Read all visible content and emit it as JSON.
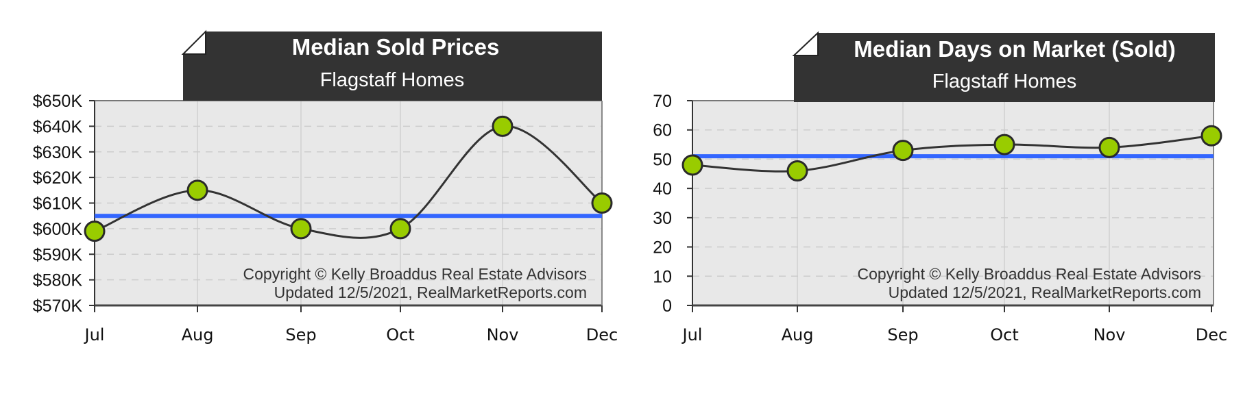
{
  "chart_data": [
    {
      "type": "line",
      "title": "Median Sold Prices",
      "subtitle": "Flagstaff Homes",
      "xlabel": "",
      "ylabel": "",
      "categories": [
        "Jul",
        "Aug",
        "Sep",
        "Oct",
        "Nov",
        "Dec"
      ],
      "series": [
        {
          "name": "Median Sold Price",
          "values": [
            599000,
            615000,
            600000,
            600000,
            640000,
            610000
          ],
          "color": "#99cc00"
        },
        {
          "name": "Average",
          "values": [
            605000,
            605000,
            605000,
            605000,
            605000,
            605000
          ],
          "color": "#3366ff"
        }
      ],
      "ylim": [
        570000,
        650000
      ],
      "yticks": [
        650000,
        640000,
        630000,
        620000,
        610000,
        600000,
        590000,
        580000,
        570000
      ],
      "ytick_labels": [
        "$650K",
        "$640K",
        "$630K",
        "$620K",
        "$610K",
        "$600K",
        "$590K",
        "$580K",
        "$570K"
      ],
      "grid": true,
      "legend": "none",
      "annotation": [
        "Copyright © Kelly Broaddus Real Estate Advisors",
        "Updated 12/5/2021, RealMarketReports.com"
      ]
    },
    {
      "type": "line",
      "title": "Median Days on Market (Sold)",
      "subtitle": "Flagstaff Homes",
      "xlabel": "",
      "ylabel": "",
      "categories": [
        "Jul",
        "Aug",
        "Sep",
        "Oct",
        "Nov",
        "Dec"
      ],
      "series": [
        {
          "name": "Median Days on Market",
          "values": [
            48,
            46,
            53,
            55,
            54,
            58
          ],
          "color": "#99cc00"
        },
        {
          "name": "Average",
          "values": [
            51,
            51,
            51,
            51,
            51,
            51
          ],
          "color": "#3366ff"
        }
      ],
      "ylim": [
        0,
        70
      ],
      "yticks": [
        70,
        60,
        50,
        40,
        30,
        20,
        10,
        0
      ],
      "ytick_labels": [
        "70",
        "60",
        "50",
        "40",
        "30",
        "20",
        "10",
        "0"
      ],
      "grid": true,
      "legend": "none",
      "annotation": [
        "Copyright © Kelly Broaddus Real Estate Advisors",
        "Updated 12/5/2021, RealMarketReports.com"
      ]
    }
  ],
  "charts": [
    {
      "title": "Median Sold Prices",
      "subtitle": "Flagstaff Homes",
      "copyright": "Copyright © Kelly Broaddus Real Estate Advisors",
      "updated": "Updated 12/5/2021, RealMarketReports.com"
    },
    {
      "title": "Median Days on Market (Sold)",
      "subtitle": "Flagstaff Homes",
      "copyright": "Copyright © Kelly Broaddus Real Estate Advisors",
      "updated": "Updated 12/5/2021, RealMarketReports.com"
    }
  ],
  "colors": {
    "banner": "#333333",
    "plot_bg": "#e8e8e8",
    "grid": "#c8c8c8",
    "point_fill": "#99cc00",
    "point_stroke": "#333333",
    "line": "#333333",
    "average": "#3366ff"
  }
}
